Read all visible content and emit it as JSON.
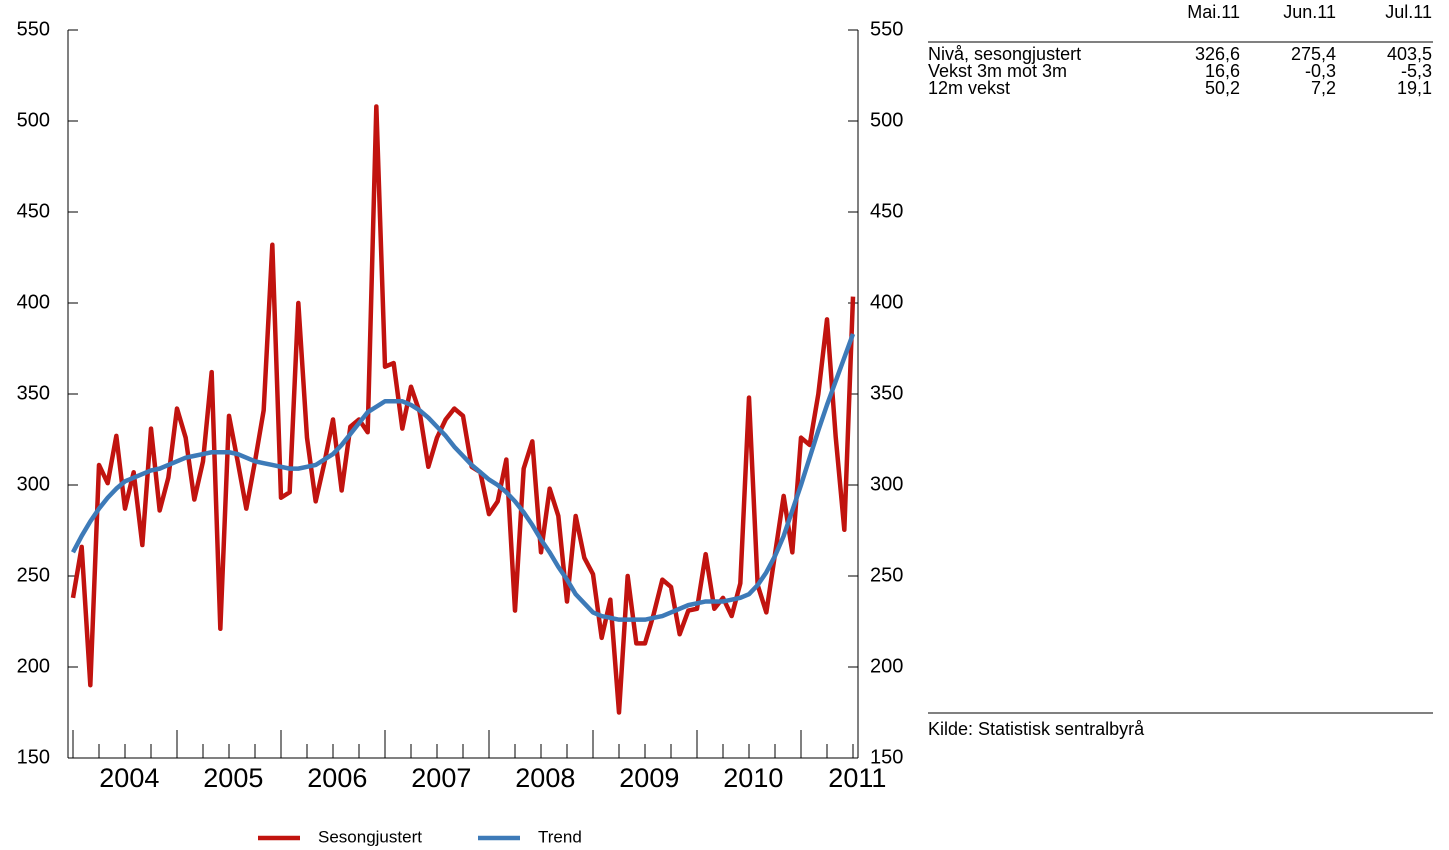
{
  "chart_data": {
    "type": "line",
    "categories": [
      null,
      null,
      null,
      null,
      null,
      null,
      "2004",
      null,
      null,
      null,
      null,
      null,
      null,
      null,
      null,
      null,
      null,
      null,
      "2005",
      null,
      null,
      null,
      null,
      null,
      null,
      null,
      null,
      null,
      null,
      null,
      "2006",
      null,
      null,
      null,
      null,
      null,
      null,
      null,
      null,
      null,
      null,
      null,
      "2007",
      null,
      null,
      null,
      null,
      null,
      null,
      null,
      null,
      null,
      null,
      null,
      "2008",
      null,
      null,
      null,
      null,
      null,
      null,
      null,
      null,
      null,
      null,
      null,
      "2009",
      null,
      null,
      null,
      null,
      null,
      null,
      null,
      null,
      null,
      null,
      null,
      "2010",
      null,
      null,
      null,
      null,
      null,
      null,
      null,
      null,
      null,
      null,
      null,
      "2011"
    ],
    "series": [
      {
        "name": "Sesongjustert",
        "color": "#c1130f",
        "values": [
          238,
          266,
          190,
          311,
          301,
          327,
          287,
          307,
          267,
          331,
          286,
          304,
          342,
          326,
          292,
          313,
          362,
          221,
          338,
          313,
          287,
          313,
          341,
          432,
          293,
          296,
          400,
          326,
          291,
          312,
          336,
          297,
          332,
          336,
          329,
          508,
          365,
          367,
          331,
          354,
          340,
          310,
          326,
          336,
          342,
          338,
          310,
          307,
          284,
          291,
          314,
          231,
          309,
          324,
          263,
          298,
          283,
          236,
          283,
          260,
          251,
          216,
          237,
          175,
          250,
          213,
          213,
          229,
          248,
          244,
          218,
          231,
          232,
          262,
          232,
          238,
          228,
          246,
          348,
          245,
          230,
          262,
          294,
          263,
          326,
          322,
          350,
          391,
          326.6,
          275.4,
          403.5
        ]
      },
      {
        "name": "Trend",
        "color": "#3d7ab8",
        "values": [
          263,
          272,
          280,
          287,
          293,
          298,
          302,
          304,
          306,
          308,
          309,
          311,
          313,
          315,
          316,
          317,
          318,
          318,
          318,
          317,
          315,
          313,
          312,
          311,
          310,
          309,
          309,
          310,
          311,
          314,
          317,
          322,
          328,
          334,
          340,
          343,
          346,
          346,
          346,
          344,
          341,
          337,
          332,
          327,
          321,
          316,
          311,
          307,
          303,
          300,
          296,
          291,
          285,
          278,
          270,
          263,
          255,
          248,
          240,
          235,
          230,
          228,
          227,
          226,
          226,
          226,
          226,
          227,
          228,
          230,
          232,
          234,
          235,
          236,
          236,
          236,
          237,
          238,
          240,
          245,
          252,
          261,
          272,
          286,
          300,
          315,
          330,
          344,
          357,
          370,
          383
        ]
      }
    ],
    "ylim": [
      150,
      550
    ],
    "yticks": [
      150,
      200,
      250,
      300,
      350,
      400,
      450,
      500,
      550
    ],
    "y2lim": [
      150,
      550
    ],
    "y2ticks": [
      150,
      200,
      250,
      300,
      350,
      400,
      450,
      500,
      550
    ],
    "grid": false,
    "legend": "bottom"
  },
  "table": {
    "columns": [
      "Mai.11",
      "Jun.11",
      "Jul.11"
    ],
    "rows": [
      [
        "Nivå, sesongjustert",
        "326,6",
        "275,4",
        "403,5"
      ],
      [
        "Vekst 3m mot 3m",
        "16,6",
        "-0,3",
        "-5,3"
      ],
      [
        "12m vekst",
        "50,2",
        "7,2",
        "19,1"
      ]
    ]
  },
  "source": "Kilde: Statistisk sentralbyrå"
}
